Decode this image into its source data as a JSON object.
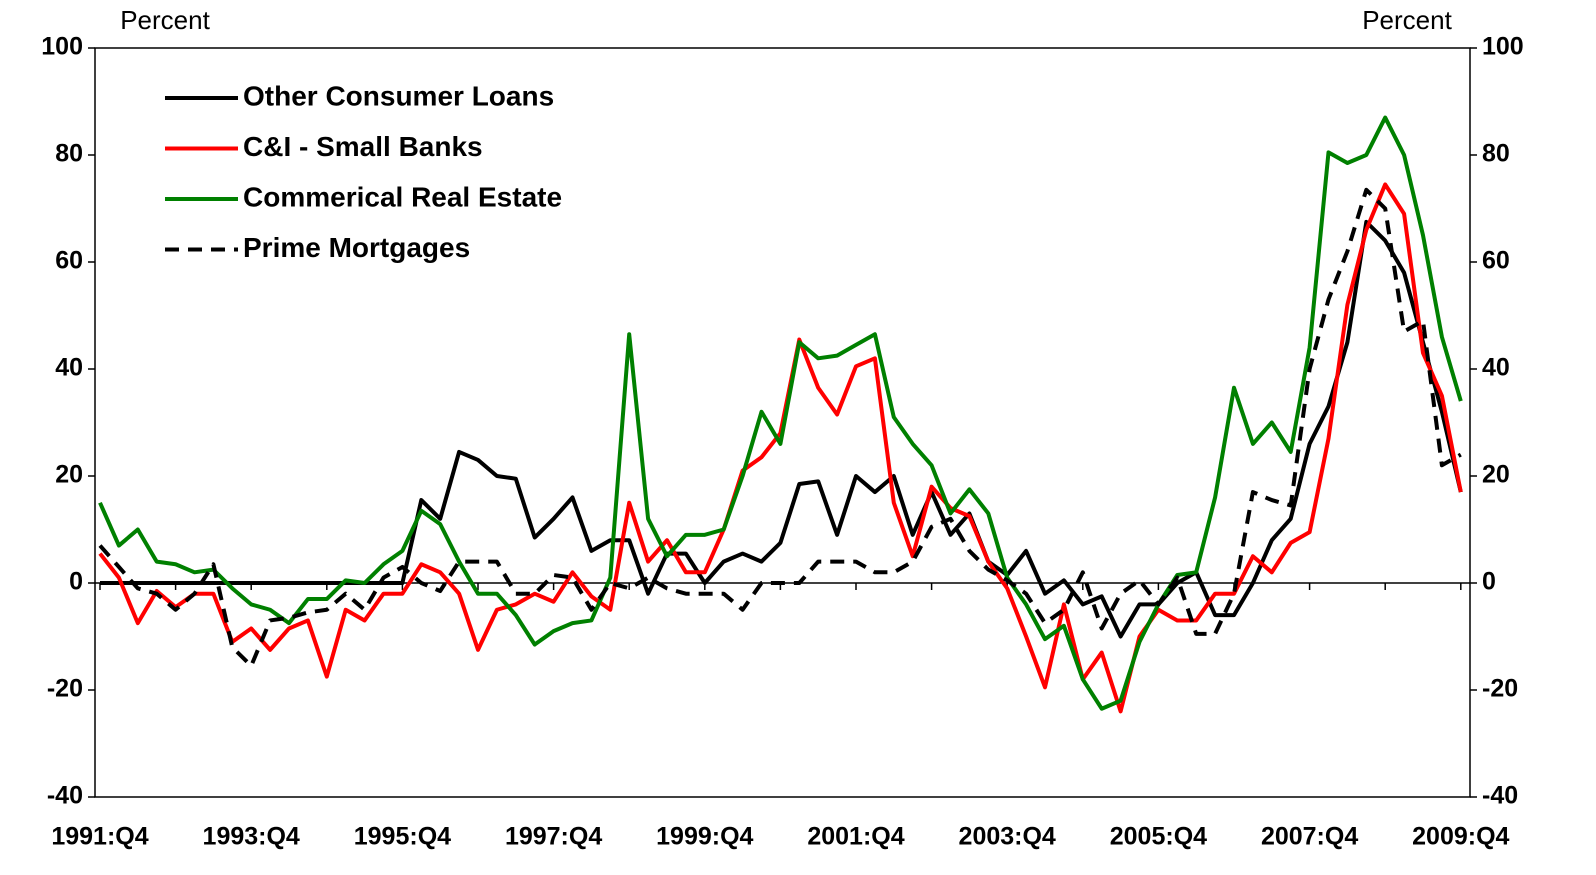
{
  "chart_data": {
    "type": "line",
    "y_label": "Percent",
    "y2_label": "Percent",
    "categories": [
      "1991:Q4",
      null,
      null,
      null,
      null,
      null,
      null,
      null,
      "1993:Q4",
      null,
      null,
      null,
      null,
      null,
      null,
      null,
      "1995:Q4",
      null,
      null,
      null,
      null,
      null,
      null,
      null,
      "1997:Q4",
      null,
      null,
      null,
      null,
      null,
      null,
      null,
      "1999:Q4",
      null,
      null,
      null,
      null,
      null,
      null,
      null,
      "2001:Q4",
      null,
      null,
      null,
      null,
      null,
      null,
      null,
      "2003:Q4",
      null,
      null,
      null,
      null,
      null,
      null,
      null,
      "2005:Q4",
      null,
      null,
      null,
      null,
      null,
      null,
      null,
      "2007:Q4",
      null,
      null,
      null,
      null,
      null,
      null,
      null,
      "2009:Q4"
    ],
    "ylim": [
      -40,
      100
    ],
    "yticks": [
      -40,
      -20,
      0,
      20,
      40,
      60,
      80,
      100
    ],
    "y2lim": [
      -40,
      100
    ],
    "y2ticks": [
      -40,
      -20,
      0,
      20,
      40,
      60,
      80,
      100
    ],
    "legend": "upper left",
    "series": [
      {
        "name": "Other Consumer Loans",
        "color": "#000000",
        "dash": false,
        "values": [
          0,
          0,
          0,
          0,
          0,
          0,
          0,
          0,
          0,
          0,
          0,
          0,
          0,
          0,
          0,
          0,
          0,
          15.5,
          12,
          24.5,
          23,
          20,
          19.5,
          8.5,
          12,
          16,
          6,
          8,
          8,
          -2,
          5.5,
          5.5,
          0,
          4,
          5.5,
          4,
          7.5,
          18.5,
          19,
          9,
          20,
          17,
          20,
          9,
          17,
          9,
          13,
          4,
          1.5,
          6,
          -2,
          0.5,
          -4,
          -2.5,
          -10,
          -4,
          -4,
          0,
          2,
          -6,
          -6,
          0,
          8,
          12,
          26,
          33,
          45,
          67.5,
          64,
          58,
          45,
          32,
          17
        ]
      },
      {
        "name": "C&I - Small Banks",
        "color": "#ff0000",
        "dash": false,
        "values": [
          5.5,
          1,
          -7.5,
          -1.5,
          -4.5,
          -2,
          -2,
          -11,
          -8.5,
          -12.5,
          -8.5,
          -7,
          -17.5,
          -5,
          -7,
          -2,
          -2,
          3.5,
          2,
          -2,
          -12.5,
          -5,
          -4,
          -2,
          -3.5,
          2,
          -2.5,
          -5,
          15,
          4,
          8,
          2,
          2,
          10,
          21,
          23.5,
          28,
          45.5,
          36.5,
          31.5,
          40.5,
          42,
          15,
          5,
          18,
          14,
          12.5,
          4,
          -1,
          -10,
          -19.5,
          -4,
          -18,
          -13,
          -24,
          -10,
          -5,
          -7,
          -7,
          -2,
          -2,
          5,
          2,
          7.5,
          9.5,
          27,
          52,
          66,
          74.5,
          69,
          43,
          35,
          17
        ]
      },
      {
        "name": "Commerical Real Estate",
        "color": "#008000",
        "dash": false,
        "values": [
          15,
          7,
          10,
          4,
          3.5,
          2,
          2.5,
          -1,
          -4,
          -5,
          -7.5,
          -3,
          -3,
          0.5,
          0,
          3.5,
          6,
          13.5,
          11,
          4,
          -2,
          -2,
          -6,
          -11.5,
          -9,
          -7.5,
          -7,
          1,
          46.5,
          12,
          5,
          9,
          9,
          10,
          20,
          32,
          26,
          45,
          42,
          42.5,
          44.5,
          46.5,
          31,
          26,
          22,
          13,
          17.5,
          13,
          1,
          -4,
          -10.5,
          -8,
          -18,
          -23.5,
          -22,
          -11,
          -4,
          1.5,
          2,
          16,
          36.5,
          26,
          30,
          24.5,
          44,
          80.5,
          78.5,
          80,
          87,
          80,
          65,
          46,
          34
        ]
      },
      {
        "name": "Prime Mortgages",
        "color": "#000000",
        "dash": true,
        "values": [
          7,
          3,
          -1,
          -2,
          -5,
          -2,
          3.5,
          -12,
          -15.5,
          -7,
          -6.5,
          -5.5,
          -5,
          -2,
          -5,
          1,
          3,
          0,
          -1.5,
          4,
          4,
          4,
          -2,
          -2,
          1.5,
          1,
          -5,
          0,
          -1,
          1,
          -1,
          -2,
          -2,
          -2,
          -5,
          0,
          0,
          0,
          4,
          4,
          4,
          2,
          2,
          4,
          10.5,
          12,
          6,
          2.5,
          0.5,
          -2,
          -7.5,
          -5,
          2,
          -8.5,
          -2,
          0.5,
          -4,
          1,
          -9.5,
          -9.5,
          -2,
          17,
          15.5,
          14.5,
          40,
          53,
          62,
          73.5,
          70,
          47,
          49,
          22,
          24
        ]
      }
    ]
  }
}
